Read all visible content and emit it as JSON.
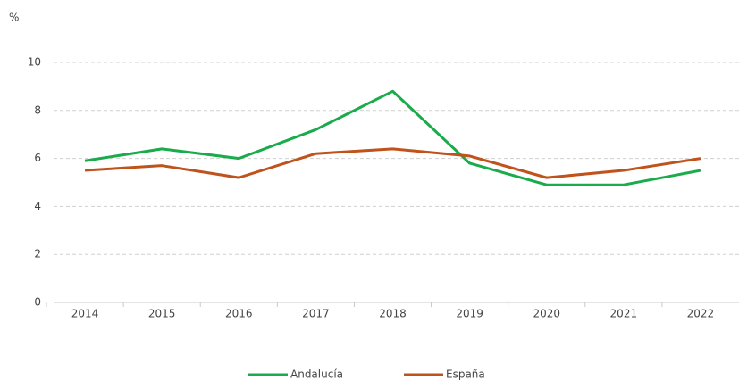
{
  "chart_data": {
    "type": "line",
    "y_label": "%",
    "categories": [
      "2014",
      "2015",
      "2016",
      "2017",
      "2018",
      "2019",
      "2020",
      "2021",
      "2022"
    ],
    "series": [
      {
        "name": "Andalucía",
        "color": "#1aab4b",
        "values": [
          5.9,
          6.4,
          6.0,
          7.2,
          8.8,
          5.8,
          4.9,
          4.9,
          5.5
        ]
      },
      {
        "name": "España",
        "color": "#c0521c",
        "values": [
          5.5,
          5.7,
          5.2,
          6.2,
          6.4,
          6.1,
          5.2,
          5.5,
          6.0
        ]
      }
    ],
    "ylim": [
      0,
      10
    ],
    "yticks": [
      0,
      2,
      4,
      6,
      8,
      10
    ],
    "grid": true,
    "legend": "bottom"
  }
}
